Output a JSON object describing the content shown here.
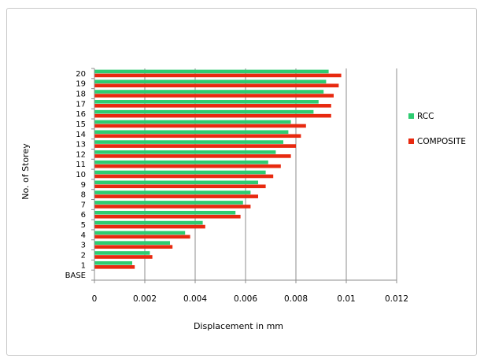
{
  "chart_data": {
    "type": "bar",
    "orientation": "horizontal",
    "categories": [
      "BASE",
      "1",
      "2",
      "3",
      "4",
      "5",
      "6",
      "7",
      "8",
      "9",
      "10",
      "11",
      "12",
      "13",
      "14",
      "15",
      "16",
      "17",
      "18",
      "19",
      "20"
    ],
    "series": [
      {
        "name": "RCC",
        "color": "#2ecc71",
        "values": [
          0,
          0.0015,
          0.0022,
          0.003,
          0.0036,
          0.0043,
          0.0056,
          0.0059,
          0.0062,
          0.0065,
          0.0068,
          0.0069,
          0.0072,
          0.0075,
          0.0077,
          0.0078,
          0.0087,
          0.0089,
          0.0091,
          0.0092,
          0.0093
        ]
      },
      {
        "name": "COMPOSITE",
        "color": "#e8290f",
        "values": [
          0,
          0.0016,
          0.0023,
          0.0031,
          0.0038,
          0.0044,
          0.0058,
          0.0062,
          0.0065,
          0.0068,
          0.0071,
          0.0074,
          0.0078,
          0.008,
          0.0082,
          0.0084,
          0.0094,
          0.0094,
          0.0095,
          0.0097,
          0.0098
        ]
      }
    ],
    "xticks": [
      "0",
      "0.002",
      "0.004",
      "0.006",
      "0.008",
      "0.01",
      "0.012"
    ],
    "xlim": [
      0,
      0.012
    ],
    "xlabel": "Displacement in mm",
    "ylabel": "No. of Storey",
    "grid": true,
    "legend_position": "right"
  }
}
